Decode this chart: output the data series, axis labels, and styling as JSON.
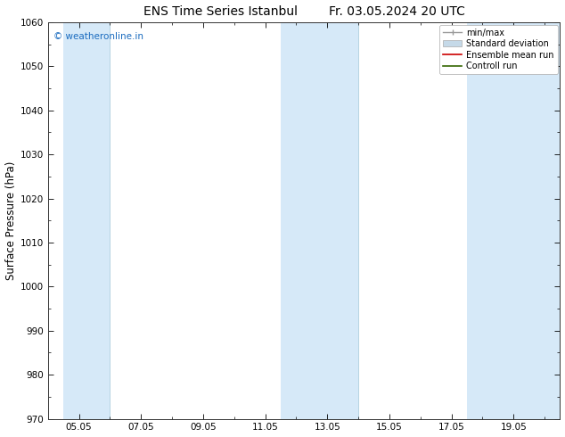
{
  "title_left": "ENS Time Series Istanbul",
  "title_right": "Fr. 03.05.2024 20 UTC",
  "ylabel": "Surface Pressure (hPa)",
  "ylim": [
    970,
    1060
  ],
  "yticks": [
    970,
    980,
    990,
    1000,
    1010,
    1020,
    1030,
    1040,
    1050,
    1060
  ],
  "xtick_labels": [
    "05.05",
    "07.05",
    "09.05",
    "11.05",
    "13.05",
    "15.05",
    "17.05",
    "19.05"
  ],
  "xtick_positions": [
    4,
    6,
    8,
    10,
    12,
    14,
    16,
    18
  ],
  "xlim": [
    3.0,
    19.5
  ],
  "watermark": "© weatheronline.in",
  "watermark_color": "#1a6bbf",
  "bg_color": "#FFFFFF",
  "plot_bg_color": "#FFFFFF",
  "shaded_bands": [
    {
      "xmin": 3.5,
      "xmax": 5.0,
      "color": "#D6E9F8"
    },
    {
      "xmin": 10.5,
      "xmax": 13.0,
      "color": "#D6E9F8"
    },
    {
      "xmin": 16.5,
      "xmax": 19.5,
      "color": "#D6E9F8"
    }
  ],
  "vlines": [
    5.0,
    13.0
  ],
  "legend_items": [
    {
      "label": "min/max",
      "color": "#AAAAAA"
    },
    {
      "label": "Standard deviation",
      "color": "#C5D9E8"
    },
    {
      "label": "Ensemble mean run",
      "color": "#CC0000"
    },
    {
      "label": "Controll run",
      "color": "#336600"
    }
  ],
  "title_fontsize": 10,
  "tick_fontsize": 7.5,
  "ylabel_fontsize": 8.5,
  "legend_fontsize": 7
}
